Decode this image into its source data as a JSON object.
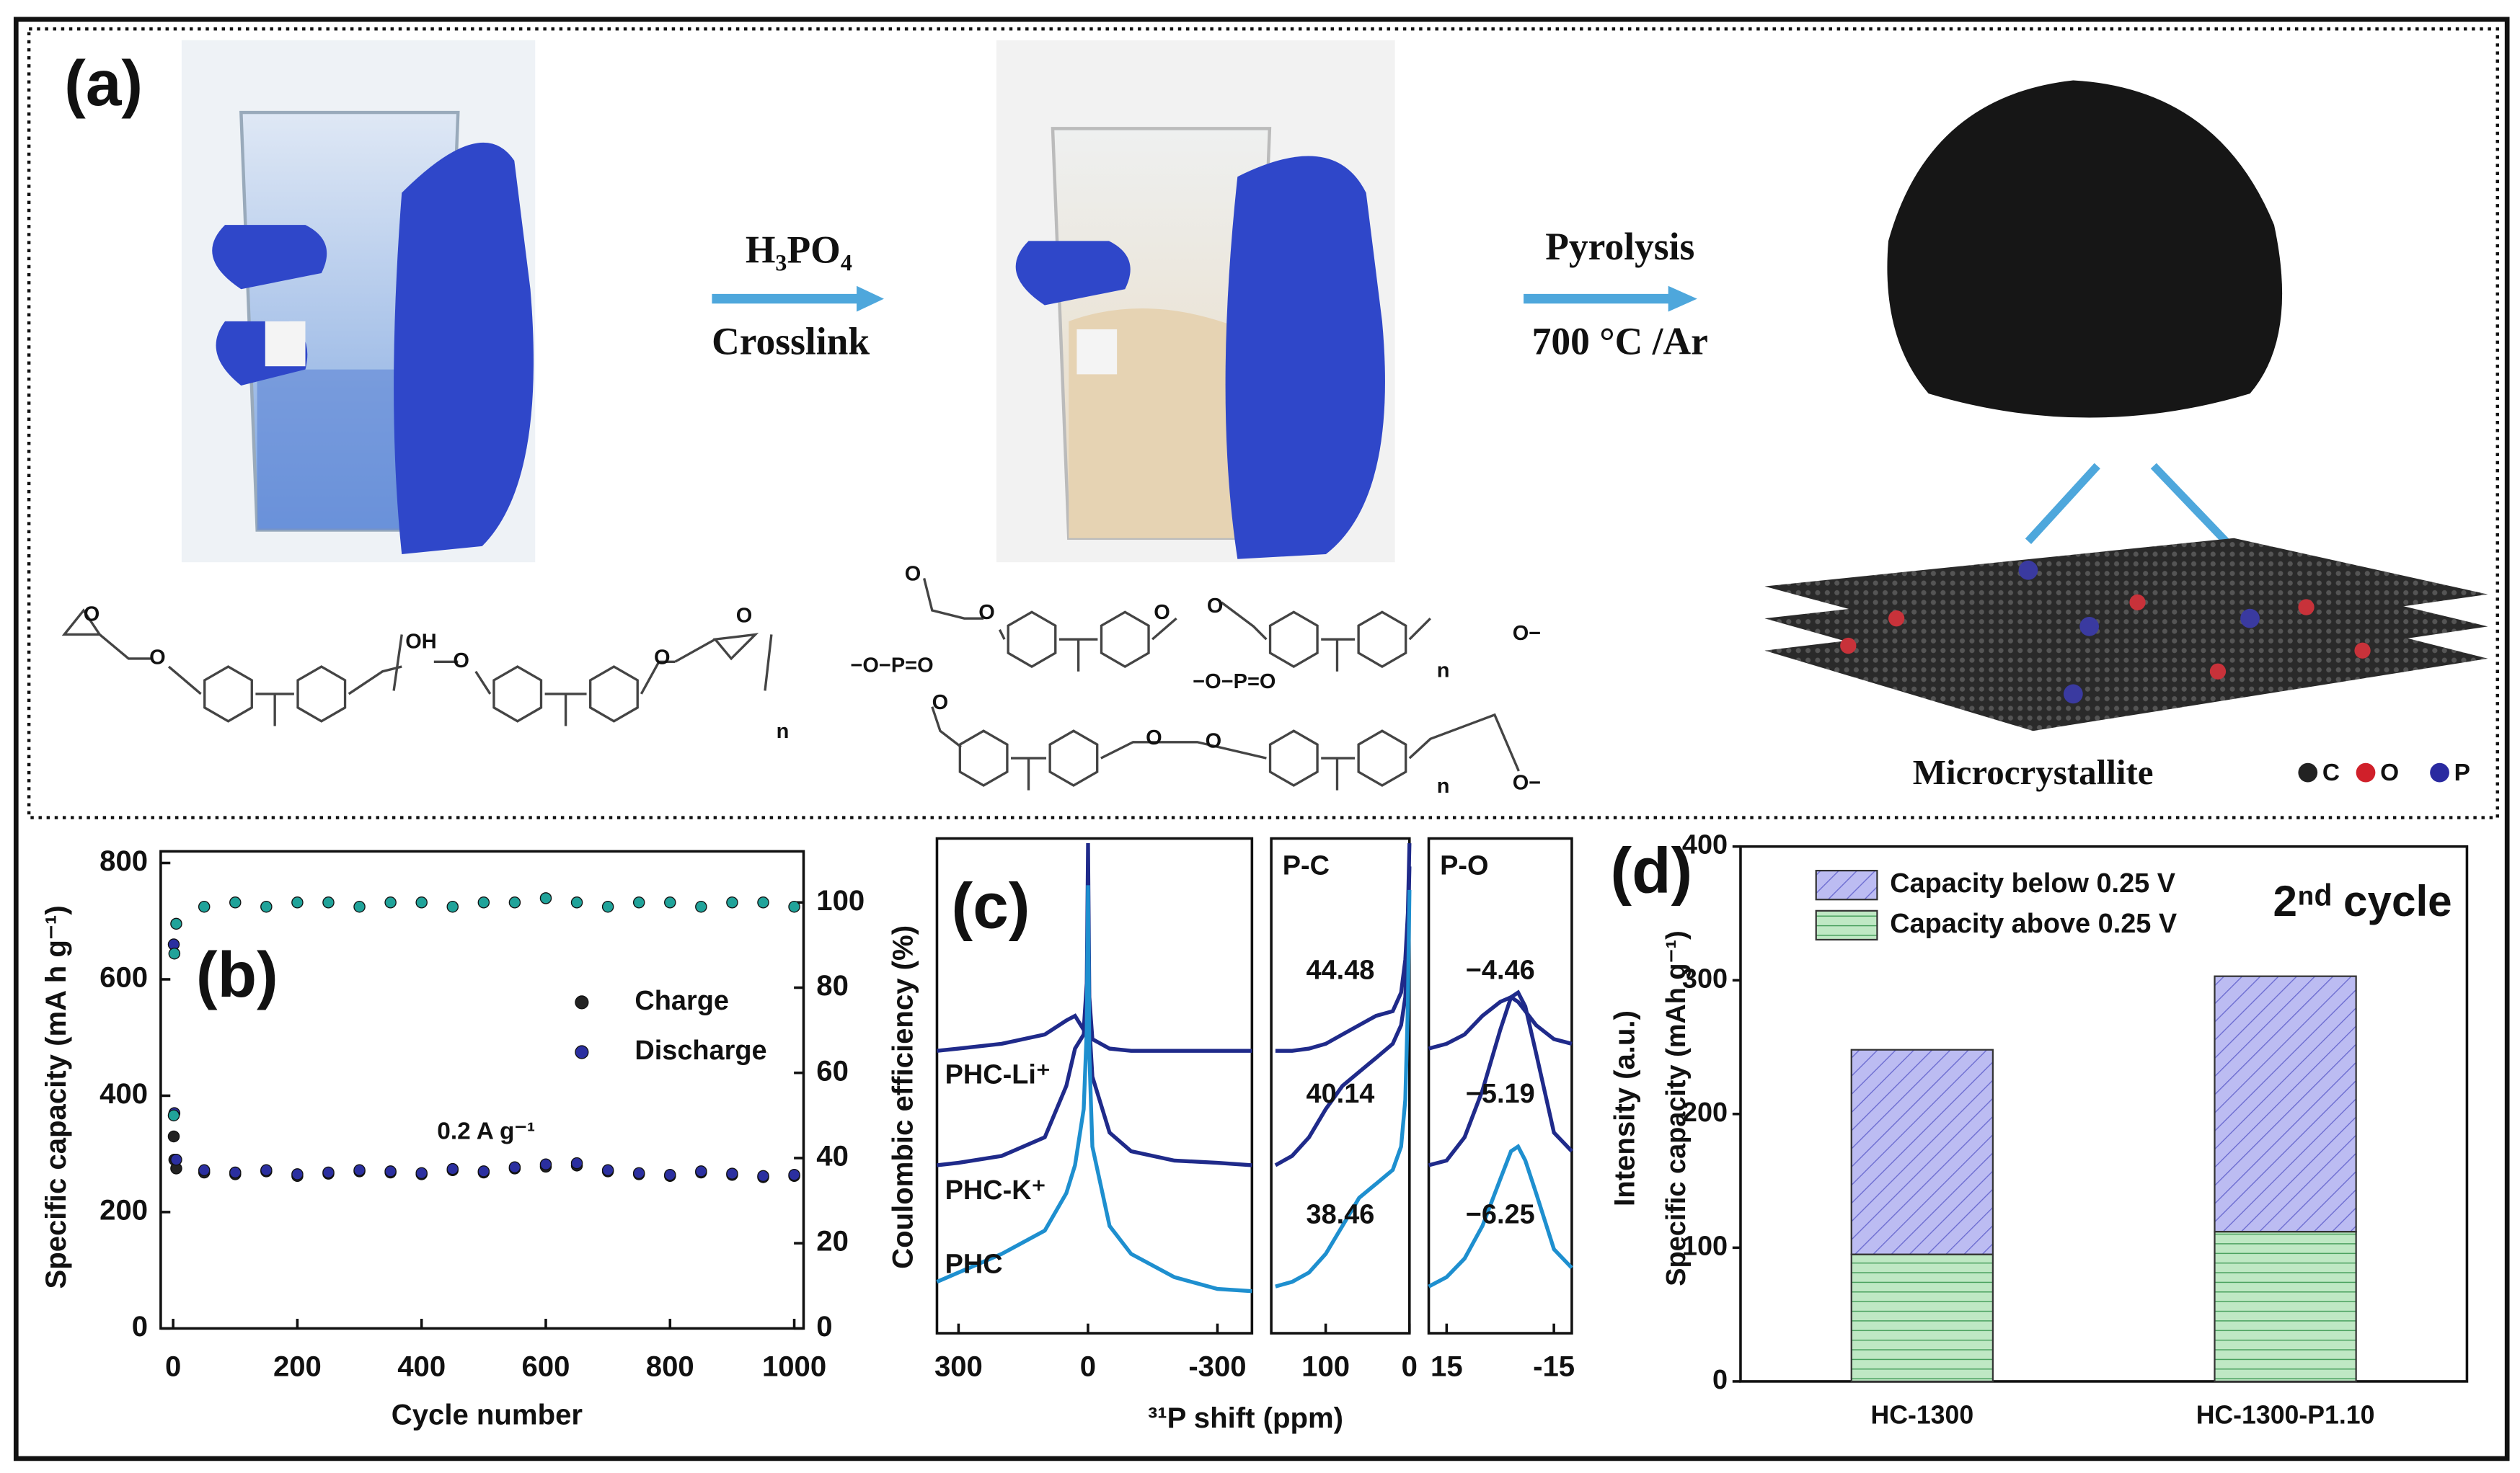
{
  "panel_a": {
    "label": "(a)",
    "step1_reagent": "H₃PO₄",
    "step1_process": "Crosslink",
    "step2_process": "Pyrolysis",
    "step2_condition": "700 °C /Ar",
    "product": "Microcrystallite",
    "atom_legend": [
      "C",
      "O",
      "P"
    ],
    "structure1_labels": [
      "O",
      "O",
      "OH",
      "O",
      "O",
      "n",
      "O"
    ],
    "structure2_labels": [
      "O",
      "O",
      "−O−P=O",
      "O",
      "O",
      "−O−P=O",
      "O",
      "O",
      "O",
      "n",
      "n",
      "O−",
      "O−"
    ]
  },
  "chart_data": [
    {
      "type": "scatter",
      "panel_label": "(b)",
      "xlabel": "Cycle number",
      "ylabel": "Specific capacity (mA h g⁻¹)",
      "y2label": "Coulombic efficiency (%)",
      "annotation": "0.2 A g⁻¹",
      "x": [
        1,
        2,
        5,
        50,
        100,
        150,
        200,
        250,
        300,
        350,
        400,
        450,
        500,
        550,
        600,
        650,
        700,
        750,
        800,
        850,
        900,
        950,
        1000
      ],
      "xlim": [
        -20,
        1015
      ],
      "xticks": [
        0,
        200,
        400,
        600,
        800,
        1000
      ],
      "ylim": [
        0,
        820
      ],
      "yticks": [
        0,
        200,
        400,
        600,
        800
      ],
      "y2lim": [
        0,
        112
      ],
      "y2ticks": [
        0,
        20,
        40,
        60,
        80,
        100
      ],
      "series": [
        {
          "name": "Charge",
          "color": "#222222",
          "values": [
            330,
            290,
            275,
            268,
            265,
            270,
            262,
            266,
            270,
            268,
            265,
            272,
            268,
            275,
            278,
            280,
            270,
            265,
            262,
            268,
            264,
            260,
            262
          ]
        },
        {
          "name": "Discharge",
          "color": "#2b2fa0",
          "values": [
            660,
            370,
            290,
            272,
            268,
            272,
            265,
            268,
            272,
            270,
            267,
            274,
            270,
            277,
            282,
            284,
            272,
            267,
            264,
            270,
            266,
            262,
            264
          ]
        },
        {
          "color": "#20a39a",
          "axis": "y2",
          "values": [
            50,
            88,
            95,
            99,
            100,
            99,
            100,
            100,
            99,
            100,
            100,
            99,
            100,
            100,
            101,
            100,
            99,
            100,
            100,
            99,
            100,
            100,
            99
          ]
        }
      ]
    },
    {
      "type": "line",
      "panel_label": "(c)",
      "xlabel": "³¹P shift (ppm)",
      "ylabel": "Intensity (a.u.)",
      "x": [
        350,
        300,
        200,
        100,
        50,
        30,
        10,
        3,
        0,
        -3,
        -10,
        -50,
        -100,
        -200,
        -300,
        -380
      ],
      "xlim": [
        350,
        -380
      ],
      "xticks": [
        300,
        0,
        -300
      ],
      "ylim": [
        0,
        10.6
      ],
      "series": [
        {
          "name": "PHC-Li⁺",
          "color": "#1f2a8a",
          "values": [
            6.05,
            6.1,
            6.2,
            6.4,
            6.7,
            6.8,
            6.5,
            7.5,
            10.5,
            7.2,
            6.3,
            6.1,
            6.05,
            6.05,
            6.05,
            6.05
          ]
        },
        {
          "name": "PHC-K⁺",
          "color": "#1f2a8a",
          "values": [
            3.6,
            3.65,
            3.8,
            4.2,
            5.3,
            6.1,
            6.4,
            7,
            8.5,
            6.6,
            5.5,
            4.3,
            3.9,
            3.7,
            3.65,
            3.6
          ]
        },
        {
          "name": "PHC",
          "color": "#1e8fcf",
          "values": [
            1.1,
            1.3,
            1.7,
            2.2,
            3.0,
            3.6,
            4.8,
            6.5,
            9.6,
            6,
            4,
            2.3,
            1.7,
            1.2,
            0.95,
            0.9
          ]
        }
      ]
    },
    {
      "type": "line",
      "title": "P-C",
      "annotations": [
        "44.48",
        "40.14",
        "38.46"
      ],
      "x": [
        160,
        140,
        120,
        100,
        80,
        60,
        40,
        20,
        10,
        5,
        2,
        0
      ],
      "xlim": [
        165,
        0
      ],
      "xticks": [
        100,
        0
      ],
      "ylim": [
        0,
        10.6
      ],
      "series": [
        {
          "color": "#1f2a8a",
          "values": [
            6.05,
            6.05,
            6.1,
            6.2,
            6.4,
            6.6,
            6.8,
            6.9,
            7.3,
            8,
            9,
            10.5
          ]
        },
        {
          "color": "#1f2a8a",
          "values": [
            3.6,
            3.8,
            4.2,
            4.8,
            5.3,
            5.6,
            5.9,
            6.2,
            6.6,
            7.2,
            8.5,
            10
          ]
        },
        {
          "color": "#1e8fcf",
          "values": [
            1.0,
            1.1,
            1.3,
            1.7,
            2.3,
            2.9,
            3.2,
            3.5,
            4,
            5,
            7,
            9.5
          ]
        }
      ]
    },
    {
      "type": "line",
      "title": "P-O",
      "annotations": [
        "−4.46",
        "−5.19",
        "−6.25"
      ],
      "x": [
        20,
        15,
        10,
        5,
        0,
        -3,
        -5,
        -7,
        -10,
        -15,
        -20
      ],
      "xlim": [
        20,
        -20
      ],
      "xticks": [
        15,
        -15
      ],
      "ylim": [
        0,
        10.6
      ],
      "series": [
        {
          "color": "#1f2a8a",
          "values": [
            6.1,
            6.2,
            6.4,
            6.8,
            7.1,
            7.2,
            7.1,
            6.9,
            6.6,
            6.3,
            6.2
          ]
        },
        {
          "color": "#1f2a8a",
          "values": [
            3.6,
            3.7,
            4.2,
            5.2,
            6.5,
            7.2,
            7.3,
            7.0,
            6.0,
            4.3,
            3.9
          ]
        },
        {
          "color": "#1e8fcf",
          "values": [
            1.0,
            1.2,
            1.6,
            2.3,
            3.3,
            3.9,
            4.0,
            3.7,
            3.0,
            1.8,
            1.4
          ]
        }
      ]
    },
    {
      "type": "bar",
      "stacked": true,
      "panel_label": "(d)",
      "ylabel": "Specific capacity (mAh g⁻¹)",
      "annotation": "2ⁿᵈ cycle",
      "categories": [
        "HC-1300",
        "HC-1300-P1.10"
      ],
      "ylim": [
        0,
        400
      ],
      "yticks": [
        0,
        100,
        200,
        300,
        400
      ],
      "series": [
        {
          "name": "Capacity above 0.25 V",
          "color": "#bfe8c4",
          "pattern": "horizontal",
          "values": [
            95,
            112
          ]
        },
        {
          "name": "Capacity below 0.25 V",
          "color": "#bcbcf2",
          "pattern": "diagonal",
          "values": [
            153,
            191
          ]
        }
      ]
    }
  ]
}
